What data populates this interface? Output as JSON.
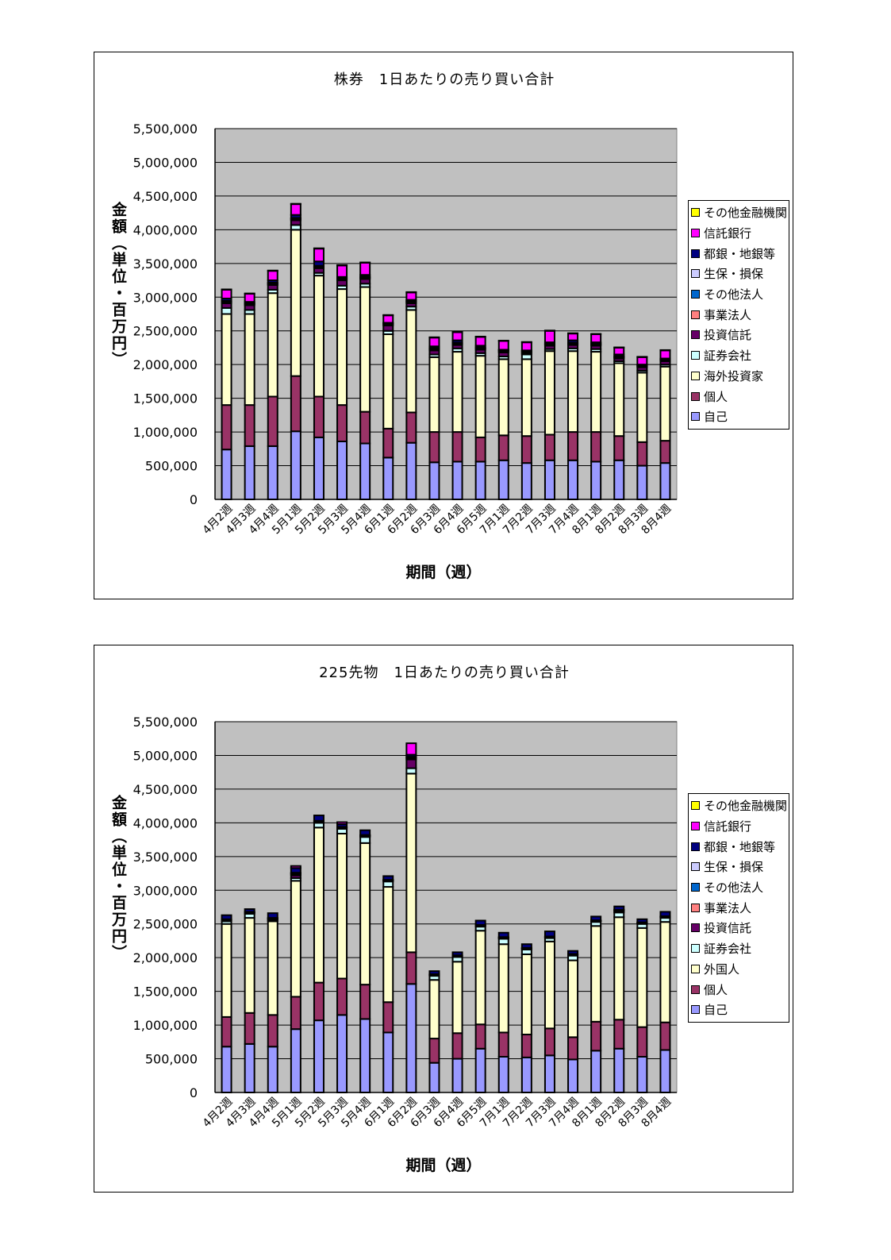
{
  "chart_data": [
    {
      "type": "bar",
      "stacked": true,
      "title": "株券　1日あたりの売り買い合計",
      "xlabel": "期間（週）",
      "ylabel": "金額（単位・百万円）",
      "ylim": [
        0,
        5500000
      ],
      "yticks": [
        "0",
        "500,000",
        "1,000,000",
        "1,500,000",
        "2,000,000",
        "2,500,000",
        "3,000,000",
        "3,500,000",
        "4,000,000",
        "4,500,000",
        "5,000,000",
        "5,500,000"
      ],
      "grid": true,
      "legend_position": "right",
      "categories": [
        "4月2週",
        "4月3週",
        "4月4週",
        "5月1週",
        "5月2週",
        "5月3週",
        "5月4週",
        "6月1週",
        "6月2週",
        "6月3週",
        "6月4週",
        "6月5週",
        "7月1週",
        "7月2週",
        "7月3週",
        "7月4週",
        "8月1週",
        "8月2週",
        "8月3週",
        "8月4週"
      ],
      "series": [
        {
          "name": "自己",
          "color": "#9999FF",
          "values": [
            740000,
            790000,
            790000,
            1010000,
            920000,
            860000,
            830000,
            620000,
            840000,
            550000,
            560000,
            560000,
            580000,
            540000,
            580000,
            580000,
            560000,
            580000,
            500000,
            540000
          ]
        },
        {
          "name": "個人",
          "color": "#993366",
          "values": [
            660000,
            610000,
            735000,
            820000,
            605000,
            540000,
            470000,
            430000,
            450000,
            450000,
            440000,
            360000,
            370000,
            400000,
            380000,
            420000,
            440000,
            360000,
            350000,
            330000
          ]
        },
        {
          "name": "海外投資家",
          "color": "#FFFFCC",
          "values": [
            1350000,
            1350000,
            1535000,
            2170000,
            1795000,
            1720000,
            1850000,
            1400000,
            1520000,
            1110000,
            1190000,
            1210000,
            1130000,
            1140000,
            1240000,
            1200000,
            1190000,
            1080000,
            1030000,
            1100000
          ]
        },
        {
          "name": "証券会社",
          "color": "#CCFFFF",
          "values": [
            90000,
            60000,
            50000,
            70000,
            40000,
            50000,
            50000,
            50000,
            50000,
            40000,
            50000,
            40000,
            40000,
            70000,
            30000,
            40000,
            40000,
            30000,
            30000,
            30000
          ]
        },
        {
          "name": "投資信託",
          "color": "#660066",
          "values": [
            70000,
            70000,
            70000,
            70000,
            70000,
            80000,
            70000,
            80000,
            50000,
            60000,
            50000,
            50000,
            60000,
            20000,
            50000,
            50000,
            50000,
            40000,
            50000,
            50000
          ]
        },
        {
          "name": "事業法人",
          "color": "#FF8080",
          "values": [
            15000,
            15000,
            15000,
            15000,
            15000,
            15000,
            15000,
            15000,
            15000,
            15000,
            15000,
            15000,
            15000,
            15000,
            15000,
            15000,
            15000,
            15000,
            15000,
            15000
          ]
        },
        {
          "name": "その他法人",
          "color": "#0066CC",
          "values": [
            10000,
            10000,
            10000,
            10000,
            10000,
            10000,
            10000,
            10000,
            10000,
            10000,
            10000,
            10000,
            10000,
            10000,
            10000,
            10000,
            10000,
            10000,
            10000,
            10000
          ]
        },
        {
          "name": "生保・損保",
          "color": "#CCCCFF",
          "values": [
            10000,
            10000,
            10000,
            10000,
            10000,
            10000,
            10000,
            10000,
            10000,
            10000,
            10000,
            10000,
            10000,
            10000,
            10000,
            10000,
            10000,
            10000,
            10000,
            10000
          ]
        },
        {
          "name": "都銀・地銀等",
          "color": "#000080",
          "values": [
            35000,
            15000,
            35000,
            45000,
            65000,
            15000,
            25000,
            5000,
            15000,
            25000,
            35000,
            25000,
            5000,
            5000,
            15000,
            35000,
            15000,
            25000,
            5000,
            5000
          ]
        },
        {
          "name": "信託銀行",
          "color": "#FF00FF",
          "values": [
            130000,
            120000,
            140000,
            160000,
            190000,
            170000,
            180000,
            110000,
            110000,
            130000,
            120000,
            130000,
            130000,
            120000,
            170000,
            100000,
            120000,
            100000,
            110000,
            120000
          ]
        },
        {
          "name": "その他金融機関",
          "color": "#FFFF00",
          "values": [
            5000,
            5000,
            5000,
            5000,
            5000,
            5000,
            5000,
            5000,
            5000,
            5000,
            5000,
            5000,
            5000,
            5000,
            5000,
            5000,
            5000,
            5000,
            5000,
            5000
          ]
        }
      ]
    },
    {
      "type": "bar",
      "stacked": true,
      "title": "225先物　1日あたりの売り買い合計",
      "xlabel": "期間（週）",
      "ylabel": "金額（単位・百万円）",
      "ylim": [
        0,
        5500000
      ],
      "yticks": [
        "0",
        "500,000",
        "1,000,000",
        "1,500,000",
        "2,000,000",
        "2,500,000",
        "3,000,000",
        "3,500,000",
        "4,000,000",
        "4,500,000",
        "5,000,000",
        "5,500,000"
      ],
      "grid": true,
      "legend_position": "right",
      "categories": [
        "4月2週",
        "4月3週",
        "4月4週",
        "5月1週",
        "5月2週",
        "5月3週",
        "5月4週",
        "6月1週",
        "6月2週",
        "6月3週",
        "6月4週",
        "6月5週",
        "7月1週",
        "7月2週",
        "7月3週",
        "7月4週",
        "8月1週",
        "8月2週",
        "8月3週",
        "8月4週"
      ],
      "series": [
        {
          "name": "自己",
          "color": "#9999FF",
          "values": [
            680000,
            720000,
            680000,
            940000,
            1070000,
            1150000,
            1090000,
            890000,
            1610000,
            440000,
            500000,
            650000,
            530000,
            520000,
            550000,
            490000,
            620000,
            650000,
            530000,
            630000
          ]
        },
        {
          "name": "個人",
          "color": "#993366",
          "values": [
            440000,
            460000,
            470000,
            480000,
            560000,
            540000,
            510000,
            450000,
            470000,
            360000,
            380000,
            360000,
            360000,
            340000,
            400000,
            330000,
            430000,
            430000,
            440000,
            410000
          ]
        },
        {
          "name": "外国人",
          "color": "#FFFFCC",
          "values": [
            1380000,
            1410000,
            1390000,
            1720000,
            2300000,
            2150000,
            2100000,
            1710000,
            2650000,
            870000,
            1060000,
            1390000,
            1310000,
            1190000,
            1290000,
            1140000,
            1420000,
            1520000,
            1470000,
            1490000
          ]
        },
        {
          "name": "証券会社",
          "color": "#CCFFFF",
          "values": [
            40000,
            60000,
            20000,
            40000,
            70000,
            70000,
            90000,
            80000,
            80000,
            60000,
            70000,
            60000,
            80000,
            70000,
            50000,
            70000,
            60000,
            70000,
            60000,
            60000
          ]
        },
        {
          "name": "投資信託",
          "color": "#660066",
          "values": [
            10000,
            10000,
            10000,
            40000,
            10000,
            10000,
            10000,
            10000,
            130000,
            10000,
            10000,
            10000,
            10000,
            10000,
            10000,
            10000,
            10000,
            10000,
            10000,
            10000
          ]
        },
        {
          "name": "事業法人",
          "color": "#FF8080",
          "values": [
            10000,
            10000,
            10000,
            20000,
            10000,
            10000,
            10000,
            5000,
            20000,
            5000,
            5000,
            5000,
            5000,
            5000,
            5000,
            5000,
            5000,
            20000,
            5000,
            5000
          ]
        },
        {
          "name": "その他法人",
          "color": "#0066CC",
          "values": [
            5000,
            5000,
            5000,
            10000,
            5000,
            5000,
            5000,
            5000,
            10000,
            5000,
            5000,
            5000,
            5000,
            5000,
            5000,
            5000,
            5000,
            5000,
            5000,
            5000
          ]
        },
        {
          "name": "生保・損保",
          "color": "#CCCCFF",
          "values": [
            5000,
            5000,
            5000,
            10000,
            5000,
            5000,
            5000,
            5000,
            10000,
            5000,
            5000,
            5000,
            5000,
            5000,
            5000,
            5000,
            5000,
            5000,
            5000,
            5000
          ]
        },
        {
          "name": "都銀・地銀等",
          "color": "#000080",
          "values": [
            60000,
            40000,
            70000,
            70000,
            80000,
            40000,
            70000,
            55000,
            30000,
            45000,
            45000,
            65000,
            65000,
            55000,
            75000,
            45000,
            55000,
            50000,
            45000,
            65000
          ]
        },
        {
          "name": "信託銀行",
          "color": "#FF00FF",
          "values": [
            0,
            0,
            0,
            30000,
            0,
            30000,
            0,
            0,
            170000,
            0,
            0,
            0,
            0,
            0,
            0,
            0,
            0,
            0,
            0,
            0
          ]
        },
        {
          "name": "その他金融機関",
          "color": "#FFFF00",
          "values": [
            0,
            0,
            0,
            0,
            0,
            0,
            0,
            0,
            0,
            0,
            0,
            0,
            0,
            0,
            0,
            0,
            0,
            0,
            0,
            0
          ]
        }
      ]
    }
  ]
}
